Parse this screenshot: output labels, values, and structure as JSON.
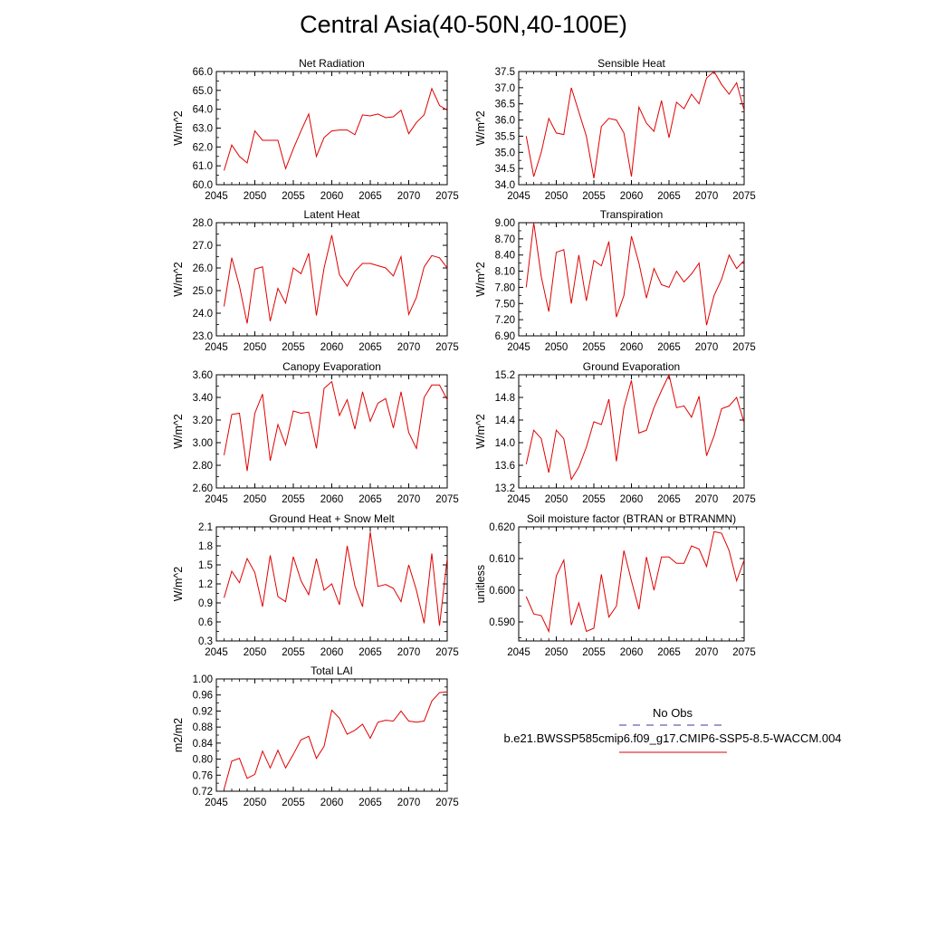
{
  "title": "Central Asia(40-50N,40-100E)",
  "legend": {
    "obs_label": "No Obs",
    "obs_color": "#3b3b9a",
    "model_label": "b.e21.BWSSP585cmip6.f09_g17.CMIP6-SSP5-8.5-WACCM.004",
    "model_color": "#e00000"
  },
  "chart_data": [
    {
      "type": "line",
      "title": "Net Radiation",
      "ylabel": "W/m^2",
      "xlim": [
        2045,
        2075
      ],
      "xticks": [
        "2045",
        "2050",
        "2055",
        "2060",
        "2065",
        "2070",
        "2075"
      ],
      "ylim": [
        60.0,
        66.0
      ],
      "yticks": [
        "60.0",
        "61.0",
        "62.0",
        "63.0",
        "64.0",
        "65.0",
        "66.0"
      ],
      "x": [
        2046,
        2047,
        2048,
        2049,
        2050,
        2051,
        2052,
        2053,
        2054,
        2055,
        2056,
        2057,
        2058,
        2059,
        2060,
        2061,
        2062,
        2063,
        2064,
        2065,
        2066,
        2067,
        2068,
        2069,
        2070,
        2071,
        2072,
        2073,
        2074,
        2075
      ],
      "values": [
        60.75,
        62.1,
        61.5,
        61.15,
        62.85,
        62.35,
        62.35,
        62.35,
        60.85,
        61.9,
        62.85,
        63.75,
        61.5,
        62.5,
        62.85,
        62.9,
        62.9,
        62.65,
        63.7,
        63.65,
        63.75,
        63.55,
        63.6,
        63.95,
        62.7,
        63.3,
        63.7,
        65.1,
        64.2,
        63.95
      ],
      "series": [
        {
          "name": "b.e21.BWSSP585cmip6.f09_g17.CMIP6-SSP5-8.5-WACCM.004",
          "color": "#e00000"
        }
      ]
    },
    {
      "type": "line",
      "title": "Sensible Heat",
      "ylabel": "W/m^2",
      "xlim": [
        2045,
        2075
      ],
      "xticks": [
        "2045",
        "2050",
        "2055",
        "2060",
        "2065",
        "2070",
        "2075"
      ],
      "ylim": [
        34.0,
        37.5
      ],
      "yticks": [
        "34.0",
        "34.5",
        "35.0",
        "35.5",
        "36.0",
        "36.5",
        "37.0",
        "37.5"
      ],
      "x": [
        2046,
        2047,
        2048,
        2049,
        2050,
        2051,
        2052,
        2053,
        2054,
        2055,
        2056,
        2057,
        2058,
        2059,
        2060,
        2061,
        2062,
        2063,
        2064,
        2065,
        2066,
        2067,
        2068,
        2069,
        2070,
        2071,
        2072,
        2073,
        2074,
        2075
      ],
      "values": [
        35.5,
        34.25,
        35.0,
        36.05,
        35.6,
        35.55,
        37.0,
        36.25,
        35.5,
        34.2,
        35.8,
        36.05,
        36.0,
        35.6,
        34.25,
        36.4,
        35.9,
        35.65,
        36.6,
        35.45,
        36.55,
        36.35,
        36.8,
        36.5,
        37.3,
        37.5,
        37.1,
        36.8,
        37.15,
        36.3
      ],
      "series": [
        {
          "name": "b.e21.BWSSP585cmip6.f09_g17.CMIP6-SSP5-8.5-WACCM.004",
          "color": "#e00000"
        }
      ]
    },
    {
      "type": "line",
      "title": "Latent Heat",
      "ylabel": "W/m^2",
      "xlim": [
        2045,
        2075
      ],
      "xticks": [
        "2045",
        "2050",
        "2055",
        "2060",
        "2065",
        "2070",
        "2075"
      ],
      "ylim": [
        23.0,
        28.0
      ],
      "yticks": [
        "23.0",
        "24.0",
        "25.0",
        "26.0",
        "27.0",
        "28.0"
      ],
      "x": [
        2046,
        2047,
        2048,
        2049,
        2050,
        2051,
        2052,
        2053,
        2054,
        2055,
        2056,
        2057,
        2058,
        2059,
        2060,
        2061,
        2062,
        2063,
        2064,
        2065,
        2066,
        2067,
        2068,
        2069,
        2070,
        2071,
        2072,
        2073,
        2074,
        2075
      ],
      "values": [
        24.3,
        26.45,
        25.2,
        23.55,
        25.95,
        26.05,
        23.65,
        25.1,
        24.45,
        26.0,
        25.75,
        26.65,
        23.9,
        26.0,
        27.45,
        25.7,
        25.2,
        25.85,
        26.2,
        26.2,
        26.1,
        26.0,
        25.65,
        26.5,
        23.95,
        24.7,
        26.05,
        26.55,
        26.45,
        26.0
      ],
      "series": [
        {
          "name": "b.e21.BWSSP585cmip6.f09_g17.CMIP6-SSP5-8.5-WACCM.004",
          "color": "#e00000"
        }
      ]
    },
    {
      "type": "line",
      "title": "Transpiration",
      "ylabel": "W/m^2",
      "xlim": [
        2045,
        2075
      ],
      "xticks": [
        "2045",
        "2050",
        "2055",
        "2060",
        "2065",
        "2070",
        "2075"
      ],
      "ylim": [
        6.9,
        9.0
      ],
      "yticks": [
        "6.90",
        "7.20",
        "7.50",
        "7.80",
        "8.10",
        "8.40",
        "8.70",
        "9.00"
      ],
      "x": [
        2046,
        2047,
        2048,
        2049,
        2050,
        2051,
        2052,
        2053,
        2054,
        2055,
        2056,
        2057,
        2058,
        2059,
        2060,
        2061,
        2062,
        2063,
        2064,
        2065,
        2066,
        2067,
        2068,
        2069,
        2070,
        2071,
        2072,
        2073,
        2074,
        2075
      ],
      "values": [
        7.8,
        9.0,
        8.0,
        7.35,
        8.45,
        8.5,
        7.5,
        8.4,
        7.55,
        8.3,
        8.2,
        8.65,
        7.25,
        7.65,
        8.75,
        8.25,
        7.6,
        8.15,
        7.85,
        7.8,
        8.1,
        7.9,
        8.05,
        8.25,
        7.1,
        7.65,
        7.95,
        8.4,
        8.15,
        8.3
      ],
      "series": [
        {
          "name": "b.e21.BWSSP585cmip6.f09_g17.CMIP6-SSP5-8.5-WACCM.004",
          "color": "#e00000"
        }
      ]
    },
    {
      "type": "line",
      "title": "Canopy Evaporation",
      "ylabel": "W/m^2",
      "xlim": [
        2045,
        2075
      ],
      "xticks": [
        "2045",
        "2050",
        "2055",
        "2060",
        "2065",
        "2070",
        "2075"
      ],
      "ylim": [
        2.6,
        3.6
      ],
      "yticks": [
        "2.60",
        "2.80",
        "3.00",
        "3.20",
        "3.40",
        "3.60"
      ],
      "x": [
        2046,
        2047,
        2048,
        2049,
        2050,
        2051,
        2052,
        2053,
        2054,
        2055,
        2056,
        2057,
        2058,
        2059,
        2060,
        2061,
        2062,
        2063,
        2064,
        2065,
        2066,
        2067,
        2068,
        2069,
        2070,
        2071,
        2072,
        2073,
        2074,
        2075
      ],
      "values": [
        2.89,
        3.25,
        3.26,
        2.75,
        3.26,
        3.43,
        2.84,
        3.16,
        2.98,
        3.28,
        3.26,
        3.27,
        2.95,
        3.48,
        3.54,
        3.24,
        3.38,
        3.12,
        3.45,
        3.19,
        3.35,
        3.39,
        3.13,
        3.45,
        3.09,
        2.95,
        3.4,
        3.51,
        3.51,
        3.38
      ],
      "series": [
        {
          "name": "b.e21.BWSSP585cmip6.f09_g17.CMIP6-SSP5-8.5-WACCM.004",
          "color": "#e00000"
        }
      ]
    },
    {
      "type": "line",
      "title": "Ground Evaporation",
      "ylabel": "W/m^2",
      "xlim": [
        2045,
        2075
      ],
      "xticks": [
        "2045",
        "2050",
        "2055",
        "2060",
        "2065",
        "2070",
        "2075"
      ],
      "ylim": [
        13.2,
        15.2
      ],
      "yticks": [
        "13.2",
        "13.6",
        "14.0",
        "14.4",
        "14.8",
        "15.2"
      ],
      "x": [
        2046,
        2047,
        2048,
        2049,
        2050,
        2051,
        2052,
        2053,
        2054,
        2055,
        2056,
        2057,
        2058,
        2059,
        2060,
        2061,
        2062,
        2063,
        2064,
        2065,
        2066,
        2067,
        2068,
        2069,
        2070,
        2071,
        2072,
        2073,
        2074,
        2075
      ],
      "values": [
        13.62,
        14.22,
        14.07,
        13.47,
        14.22,
        14.07,
        13.35,
        13.57,
        13.92,
        14.37,
        14.32,
        14.77,
        13.67,
        14.62,
        15.1,
        14.17,
        14.22,
        14.62,
        14.92,
        15.2,
        14.62,
        14.65,
        14.45,
        14.82,
        13.77,
        14.12,
        14.6,
        14.65,
        14.8,
        14.35
      ],
      "series": [
        {
          "name": "b.e21.BWSSP585cmip6.f09_g17.CMIP6-SSP5-8.5-WACCM.004",
          "color": "#e00000"
        }
      ]
    },
    {
      "type": "line",
      "title": "Ground Heat + Snow Melt",
      "ylabel": "W/m^2",
      "xlim": [
        2045,
        2075
      ],
      "xticks": [
        "2045",
        "2050",
        "2055",
        "2060",
        "2065",
        "2070",
        "2075"
      ],
      "ylim": [
        0.3,
        2.1
      ],
      "yticks": [
        "0.3",
        "0.6",
        "0.9",
        "1.2",
        "1.5",
        "1.8",
        "2.1"
      ],
      "x": [
        2046,
        2047,
        2048,
        2049,
        2050,
        2051,
        2052,
        2053,
        2054,
        2055,
        2056,
        2057,
        2058,
        2059,
        2060,
        2061,
        2062,
        2063,
        2064,
        2065,
        2066,
        2067,
        2068,
        2069,
        2070,
        2071,
        2072,
        2073,
        2074,
        2075
      ],
      "values": [
        0.98,
        1.4,
        1.22,
        1.6,
        1.38,
        0.84,
        1.65,
        1.0,
        0.92,
        1.63,
        1.25,
        1.03,
        1.6,
        1.1,
        1.2,
        0.87,
        1.8,
        1.17,
        0.84,
        2.02,
        1.16,
        1.19,
        1.13,
        0.92,
        1.5,
        1.1,
        0.58,
        1.68,
        0.54,
        1.6
      ],
      "series": [
        {
          "name": "b.e21.BWSSP585cmip6.f09_g17.CMIP6-SSP5-8.5-WACCM.004",
          "color": "#e00000"
        }
      ]
    },
    {
      "type": "line",
      "title": "Soil moisture factor (BTRAN or BTRANMN)",
      "ylabel": "unitless",
      "xlim": [
        2045,
        2075
      ],
      "xticks": [
        "2045",
        "2050",
        "2055",
        "2060",
        "2065",
        "2070",
        "2075"
      ],
      "ylim": [
        0.584,
        0.62
      ],
      "yticks": [
        "0.590",
        "0.600",
        "0.610",
        "0.620"
      ],
      "x": [
        2046,
        2047,
        2048,
        2049,
        2050,
        2051,
        2052,
        2053,
        2054,
        2055,
        2056,
        2057,
        2058,
        2059,
        2060,
        2061,
        2062,
        2063,
        2064,
        2065,
        2066,
        2067,
        2068,
        2069,
        2070,
        2071,
        2072,
        2073,
        2074,
        2075
      ],
      "values": [
        0.598,
        0.5925,
        0.592,
        0.587,
        0.6045,
        0.6095,
        0.589,
        0.596,
        0.587,
        0.588,
        0.605,
        0.5915,
        0.595,
        0.6125,
        0.603,
        0.594,
        0.6105,
        0.6,
        0.6105,
        0.6105,
        0.6085,
        0.6085,
        0.614,
        0.613,
        0.6075,
        0.6185,
        0.618,
        0.6125,
        0.603,
        0.6095
      ],
      "series": [
        {
          "name": "b.e21.BWSSP585cmip6.f09_g17.CMIP6-SSP5-8.5-WACCM.004",
          "color": "#e00000"
        }
      ]
    },
    {
      "type": "line",
      "title": "Total LAI",
      "ylabel": "m2/m2",
      "xlim": [
        2045,
        2075
      ],
      "xticks": [
        "2045",
        "2050",
        "2055",
        "2060",
        "2065",
        "2070",
        "2075"
      ],
      "ylim": [
        0.72,
        1.0
      ],
      "yticks": [
        "0.72",
        "0.76",
        "0.80",
        "0.84",
        "0.88",
        "0.92",
        "0.96",
        "1.00"
      ],
      "x": [
        2046,
        2047,
        2048,
        2049,
        2050,
        2051,
        2052,
        2053,
        2054,
        2055,
        2056,
        2057,
        2058,
        2059,
        2060,
        2061,
        2062,
        2063,
        2064,
        2065,
        2066,
        2067,
        2068,
        2069,
        2070,
        2071,
        2072,
        2073,
        2074,
        2075
      ],
      "values": [
        0.725,
        0.795,
        0.802,
        0.752,
        0.762,
        0.82,
        0.778,
        0.822,
        0.778,
        0.812,
        0.848,
        0.857,
        0.802,
        0.832,
        0.922,
        0.902,
        0.862,
        0.872,
        0.887,
        0.852,
        0.892,
        0.897,
        0.895,
        0.92,
        0.895,
        0.892,
        0.895,
        0.945,
        0.966,
        0.968
      ],
      "series": [
        {
          "name": "b.e21.BWSSP585cmip6.f09_g17.CMIP6-SSP5-8.5-WACCM.004",
          "color": "#e00000"
        }
      ]
    }
  ]
}
